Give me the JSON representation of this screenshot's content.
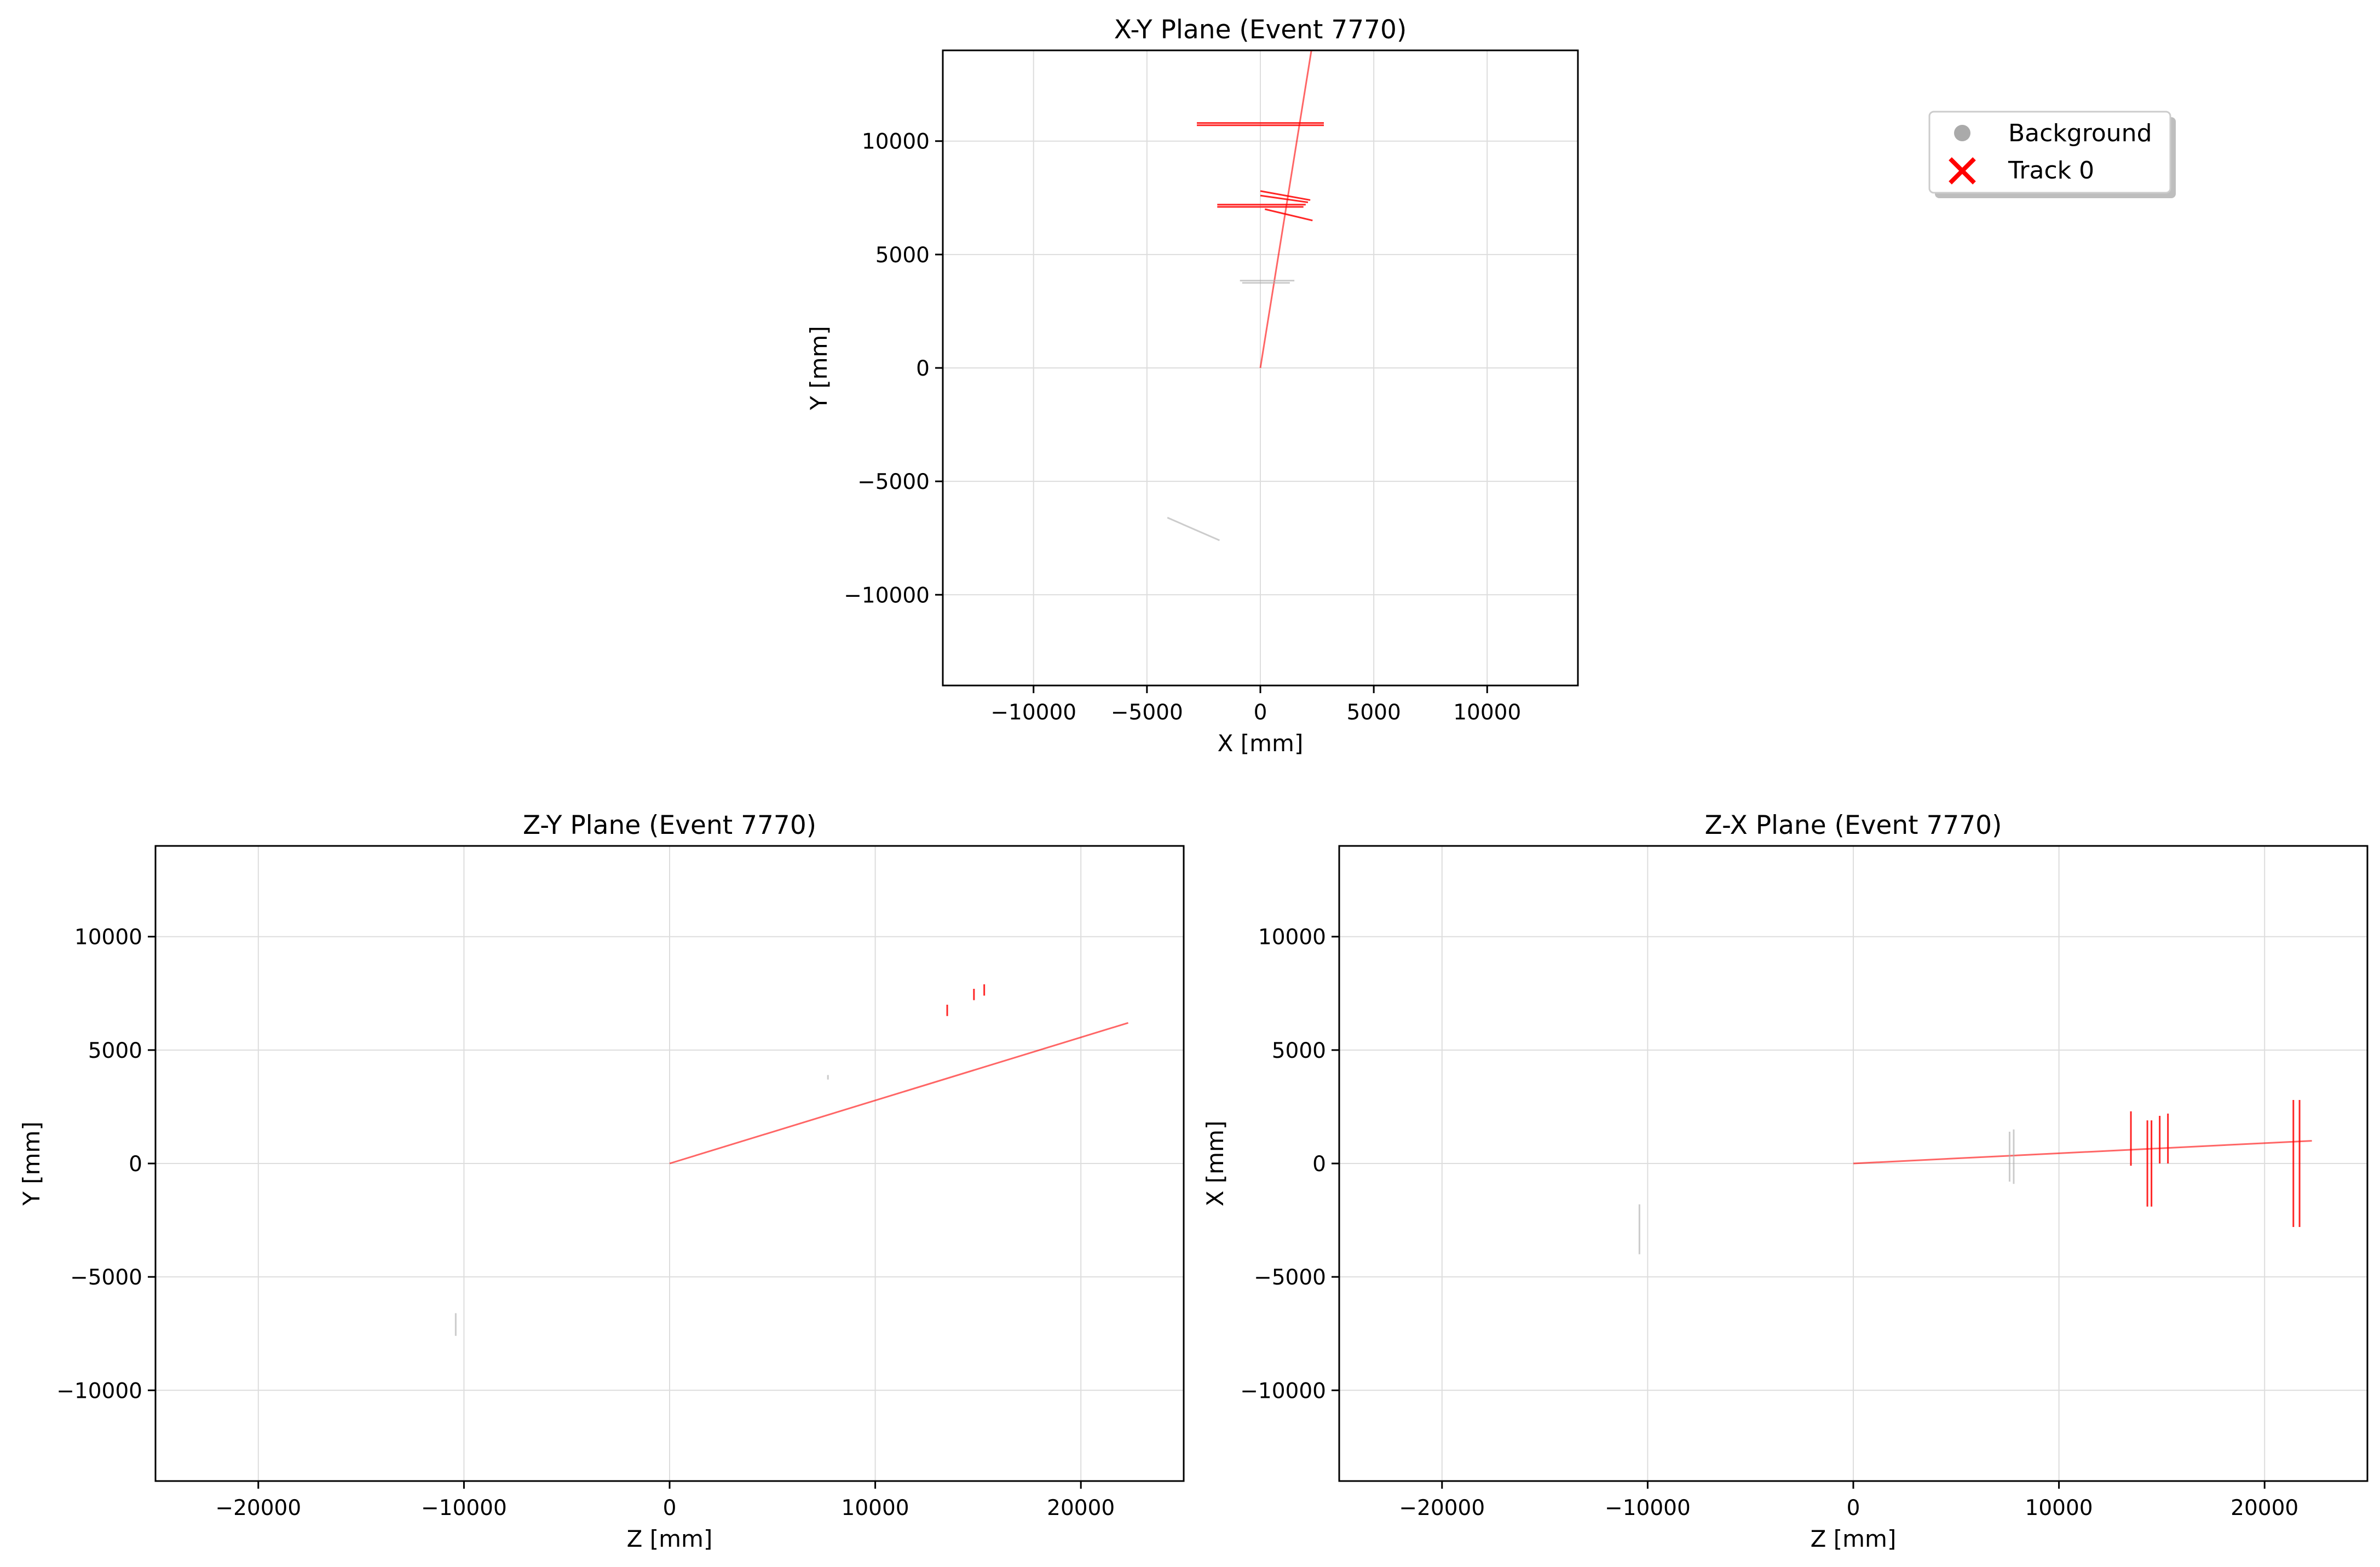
{
  "colors": {
    "track": "#ff0000",
    "background": "#aaaaaa",
    "grid": "#dddddd",
    "axis": "#000000"
  },
  "legend": {
    "placement": "top-right",
    "items": [
      {
        "label": "Background",
        "marker": "circle",
        "color": "#aaaaaa"
      },
      {
        "label": "Track 0",
        "marker": "x",
        "color": "#ff0000"
      }
    ]
  },
  "chart_data": [
    {
      "type": "line",
      "title": "X-Y Plane (Event 7770)",
      "xlabel": "X [mm]",
      "ylabel": "Y [mm]",
      "xlim": [
        -14000,
        14000
      ],
      "ylim": [
        -14000,
        14000
      ],
      "grid": true,
      "xticks": [
        -10000,
        -5000,
        0,
        5000,
        10000
      ],
      "yticks": [
        -10000,
        -5000,
        0,
        5000,
        10000
      ],
      "series": [
        {
          "name": "Track 0",
          "role": "track-line",
          "segments": [
            {
              "x": [
                0,
                2250
              ],
              "y": [
                0,
                14000
              ]
            }
          ]
        },
        {
          "name": "Track 0",
          "role": "hits",
          "segments": [
            {
              "x": [
                -2800,
                2800
              ],
              "y": [
                10800,
                10800
              ]
            },
            {
              "x": [
                -2800,
                2800
              ],
              "y": [
                10700,
                10700
              ]
            },
            {
              "x": [
                -1900,
                2000
              ],
              "y": [
                7200,
                7200
              ]
            },
            {
              "x": [
                -1900,
                1900
              ],
              "y": [
                7100,
                7100
              ]
            },
            {
              "x": [
                0,
                2200
              ],
              "y": [
                7800,
                7400
              ]
            },
            {
              "x": [
                0,
                2100
              ],
              "y": [
                7600,
                7300
              ]
            },
            {
              "x": [
                200,
                2300
              ],
              "y": [
                7000,
                6500
              ]
            }
          ]
        },
        {
          "name": "Background",
          "role": "hits",
          "segments": [
            {
              "x": [
                -900,
                1500
              ],
              "y": [
                3850,
                3850
              ]
            },
            {
              "x": [
                -800,
                1300
              ],
              "y": [
                3750,
                3750
              ]
            },
            {
              "x": [
                -4100,
                -1800
              ],
              "y": [
                -6600,
                -7600
              ]
            }
          ]
        }
      ]
    },
    {
      "type": "line",
      "title": "Z-Y Plane (Event 7770)",
      "xlabel": "Z [mm]",
      "ylabel": "Y [mm]",
      "xlim": [
        -25000,
        25000
      ],
      "ylim": [
        -14000,
        14000
      ],
      "grid": true,
      "xticks": [
        -20000,
        -10000,
        0,
        10000,
        20000
      ],
      "yticks": [
        -10000,
        -5000,
        0,
        5000,
        10000
      ],
      "series": [
        {
          "name": "Track 0",
          "role": "track-line",
          "segments": [
            {
              "x": [
                0,
                22300
              ],
              "y": [
                0,
                6200
              ]
            }
          ]
        },
        {
          "name": "Track 0",
          "role": "hits",
          "segments": [
            {
              "x": [
                13500,
                13500
              ],
              "y": [
                6500,
                7000
              ]
            },
            {
              "x": [
                14800,
                14800
              ],
              "y": [
                7200,
                7700
              ]
            },
            {
              "x": [
                15300,
                15300
              ],
              "y": [
                7400,
                7900
              ]
            }
          ]
        },
        {
          "name": "Background",
          "role": "hits",
          "segments": [
            {
              "x": [
                -10400,
                -10400
              ],
              "y": [
                -6600,
                -7600
              ]
            },
            {
              "x": [
                7700,
                7700
              ],
              "y": [
                3700,
                3900
              ]
            }
          ]
        }
      ]
    },
    {
      "type": "line",
      "title": "Z-X Plane (Event 7770)",
      "xlabel": "Z [mm]",
      "ylabel": "X [mm]",
      "xlim": [
        -25000,
        25000
      ],
      "ylim": [
        -14000,
        14000
      ],
      "grid": true,
      "xticks": [
        -20000,
        -10000,
        0,
        10000,
        20000
      ],
      "yticks": [
        -10000,
        -5000,
        0,
        5000,
        10000
      ],
      "series": [
        {
          "name": "Track 0",
          "role": "track-line",
          "segments": [
            {
              "x": [
                0,
                22300
              ],
              "y": [
                0,
                1000
              ]
            }
          ]
        },
        {
          "name": "Track 0",
          "role": "hits",
          "segments": [
            {
              "x": [
                13500,
                13500
              ],
              "y": [
                -100,
                2300
              ]
            },
            {
              "x": [
                14300,
                14300
              ],
              "y": [
                -1900,
                1900
              ]
            },
            {
              "x": [
                14500,
                14500
              ],
              "y": [
                -1900,
                1900
              ]
            },
            {
              "x": [
                14900,
                14900
              ],
              "y": [
                0,
                2100
              ]
            },
            {
              "x": [
                15300,
                15300
              ],
              "y": [
                0,
                2200
              ]
            },
            {
              "x": [
                21400,
                21400
              ],
              "y": [
                -2800,
                2800
              ]
            },
            {
              "x": [
                21700,
                21700
              ],
              "y": [
                -2800,
                2800
              ]
            }
          ]
        },
        {
          "name": "Background",
          "role": "hits",
          "segments": [
            {
              "x": [
                7600,
                7600
              ],
              "y": [
                -800,
                1400
              ]
            },
            {
              "x": [
                7800,
                7800
              ],
              "y": [
                -900,
                1500
              ]
            },
            {
              "x": [
                -10400,
                -10400
              ],
              "y": [
                -1800,
                -4000
              ]
            }
          ]
        }
      ]
    }
  ]
}
